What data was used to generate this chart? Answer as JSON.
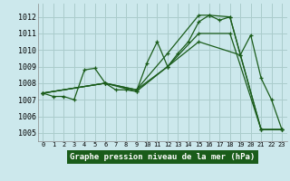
{
  "title": "Graphe pression niveau de la mer (hPa)",
  "background_color": "#cce8ec",
  "grid_color": "#aacccc",
  "line_color": "#1a5c1a",
  "label_bg": "#1a5c1a",
  "label_fg": "#ffffff",
  "xlim": [
    -0.5,
    23.5
  ],
  "ylim": [
    1004.5,
    1012.8
  ],
  "xticks": [
    0,
    1,
    2,
    3,
    4,
    5,
    6,
    7,
    8,
    9,
    10,
    11,
    12,
    13,
    14,
    15,
    16,
    17,
    18,
    19,
    20,
    21,
    22,
    23
  ],
  "yticks": [
    1005,
    1006,
    1007,
    1008,
    1009,
    1010,
    1011,
    1012
  ],
  "series": [
    {
      "x": [
        0,
        1,
        2,
        3,
        4,
        5,
        6,
        7,
        8,
        9,
        10,
        11,
        12,
        13,
        14,
        15,
        16,
        17,
        18,
        19,
        20,
        21,
        22,
        23
      ],
      "y": [
        1007.4,
        1007.2,
        1007.2,
        1007.0,
        1008.8,
        1008.9,
        1008.0,
        1007.6,
        1007.6,
        1007.5,
        1009.2,
        1010.5,
        1009.0,
        1009.8,
        1010.5,
        1011.7,
        1012.1,
        1011.8,
        1012.0,
        1009.7,
        1010.9,
        1008.3,
        1007.0,
        1005.2
      ]
    },
    {
      "x": [
        0,
        6,
        9,
        12,
        15,
        18,
        21,
        23
      ],
      "y": [
        1007.4,
        1008.0,
        1007.5,
        1009.0,
        1011.0,
        1011.0,
        1005.2,
        1005.2
      ]
    },
    {
      "x": [
        0,
        6,
        9,
        12,
        15,
        16,
        18,
        21,
        23
      ],
      "y": [
        1007.4,
        1008.0,
        1007.6,
        1009.8,
        1012.1,
        1012.1,
        1012.0,
        1005.2,
        1005.2
      ]
    },
    {
      "x": [
        0,
        6,
        9,
        12,
        15,
        19,
        21,
        23
      ],
      "y": [
        1007.4,
        1008.0,
        1007.6,
        1009.0,
        1010.5,
        1009.7,
        1005.2,
        1005.2
      ]
    }
  ]
}
